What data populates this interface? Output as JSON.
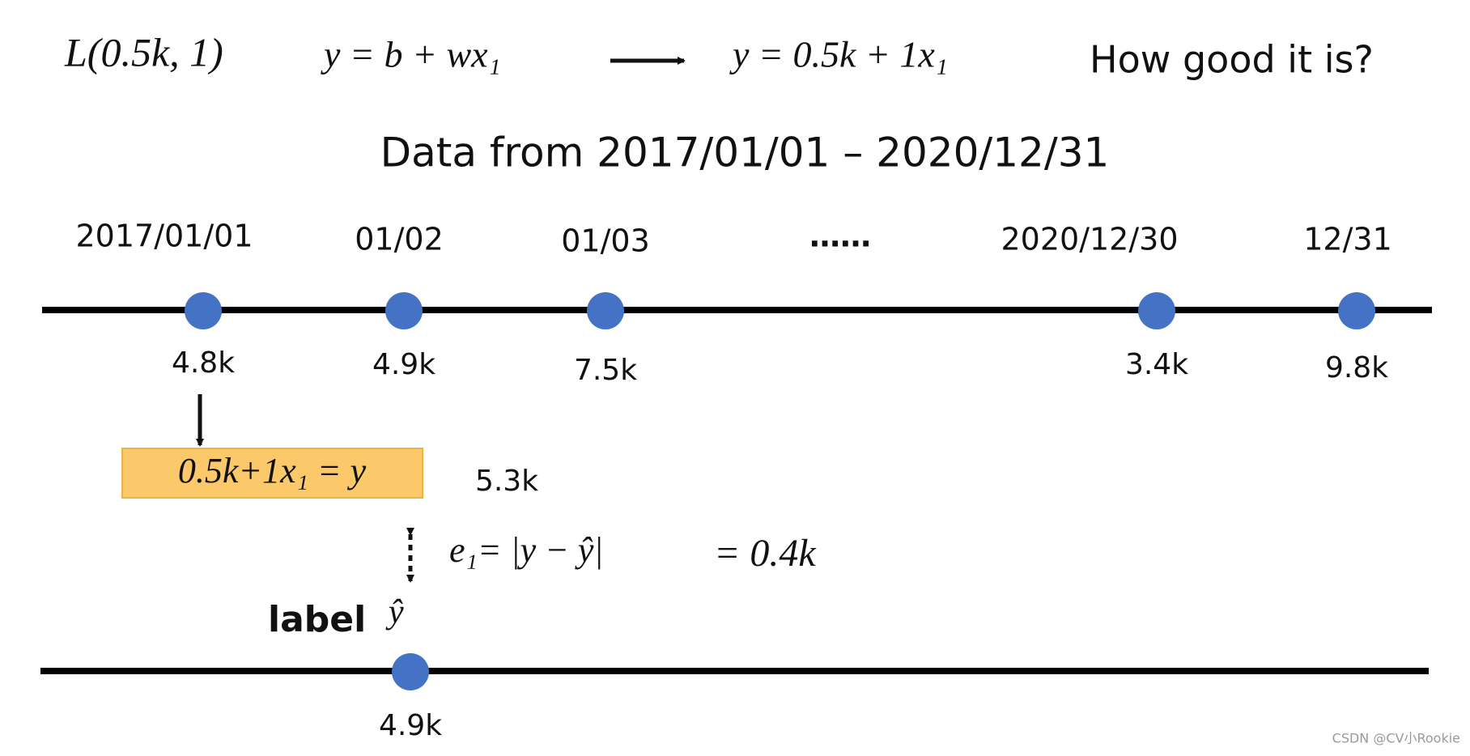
{
  "header": {
    "loss": "L(0.5k, 1)",
    "model": "y = b + wx₁",
    "model_filled": "y = 0.5k + 1x₁",
    "question": "How good it is?"
  },
  "subtitle": "Data from 2017/01/01 – 2020/12/31",
  "timeline": {
    "dates": [
      "2017/01/01",
      "01/02",
      "01/03",
      "……",
      "2020/12/30",
      "12/31"
    ],
    "values": [
      "4.8k",
      "4.9k",
      "7.5k",
      "3.4k",
      "9.8k"
    ]
  },
  "prediction": {
    "formula": "0.5k+1x₁ = y",
    "value": "5.3k"
  },
  "error": {
    "formula": "e₁= |y − ŷ|",
    "result": "= 0.4k"
  },
  "label": {
    "text": "label",
    "symbol": "ŷ",
    "value": "4.9k"
  },
  "watermark": "CSDN @CV小Rookie"
}
